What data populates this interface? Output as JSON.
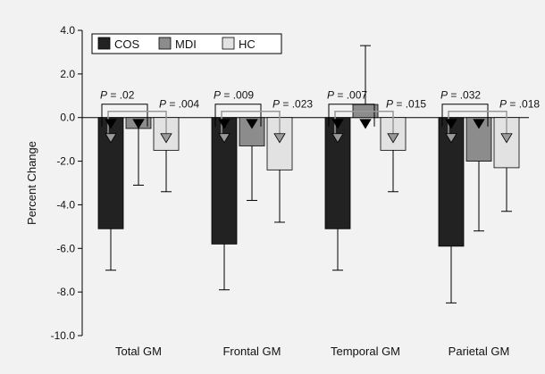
{
  "chart_data": {
    "type": "bar",
    "title": "",
    "xlabel": "",
    "ylabel": "Percent Change",
    "ylim": [
      -10.0,
      4.0
    ],
    "yticks": [
      "4.0",
      "2.0",
      "0.0",
      "-2.0",
      "-4.0",
      "-6.0",
      "-8.0",
      "-10.0"
    ],
    "ytick_values": [
      4,
      2,
      0,
      -2,
      -4,
      -6,
      -8,
      -10
    ],
    "categories": [
      "Total GM",
      "Frontal GM",
      "Temporal GM",
      "Parietal GM"
    ],
    "legend_position": "top-left",
    "series": [
      {
        "name": "COS",
        "color": "#222222",
        "values": [
          -5.1,
          -5.8,
          -5.1,
          -5.9
        ],
        "error": [
          1.9,
          2.1,
          1.9,
          2.6
        ]
      },
      {
        "name": "MDI",
        "color": "#8c8c8c",
        "values": [
          -0.5,
          -1.3,
          0.6,
          -2.0
        ],
        "error": [
          2.6,
          2.5,
          2.7,
          3.2
        ]
      },
      {
        "name": "HC",
        "color": "#e2e2e2",
        "values": [
          -1.5,
          -2.4,
          -1.5,
          -2.3
        ],
        "error": [
          1.9,
          2.4,
          1.9,
          2.0
        ]
      }
    ],
    "annotations": [
      {
        "category": "Total GM",
        "cos_vs_mdi": {
          "prefix": "P",
          "value": "= .02"
        },
        "cos_vs_hc": {
          "prefix": "P",
          "value": "= .004"
        }
      },
      {
        "category": "Frontal GM",
        "cos_vs_mdi": {
          "prefix": "P",
          "value": "= .009"
        },
        "cos_vs_hc": {
          "prefix": "P",
          "value": "= .023"
        }
      },
      {
        "category": "Temporal GM",
        "cos_vs_mdi": {
          "prefix": "P",
          "value": "= .007"
        },
        "cos_vs_hc": {
          "prefix": "P",
          "value": "= .015"
        }
      },
      {
        "category": "Parietal GM",
        "cos_vs_mdi": {
          "prefix": "P",
          "value": "= .032"
        },
        "cos_vs_hc": {
          "prefix": "P",
          "value": "= .018"
        }
      }
    ]
  }
}
